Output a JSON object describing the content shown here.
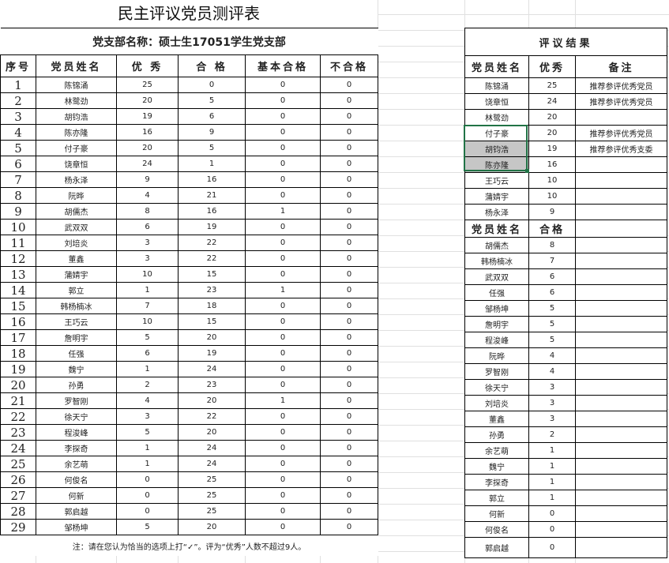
{
  "title": "民主评议党员测评表",
  "branch": "党支部名称：硕士生17051学生党支部",
  "headers": [
    "序号",
    "党员姓名",
    "优  秀",
    "合  格",
    "基本合格",
    "不合格"
  ],
  "rows": [
    [
      "1",
      "陈锦涌",
      "25",
      "0",
      "0",
      "0"
    ],
    [
      "2",
      "林鹭劲",
      "20",
      "5",
      "0",
      "0"
    ],
    [
      "3",
      "胡钧浩",
      "19",
      "6",
      "0",
      "0"
    ],
    [
      "4",
      "陈亦隆",
      "16",
      "9",
      "0",
      "0"
    ],
    [
      "5",
      "付子豪",
      "20",
      "5",
      "0",
      "0"
    ],
    [
      "6",
      "饶章恒",
      "24",
      "1",
      "0",
      "0"
    ],
    [
      "7",
      "杨永泽",
      "9",
      "16",
      "0",
      "0"
    ],
    [
      "8",
      "阮晔",
      "4",
      "21",
      "0",
      "0"
    ],
    [
      "9",
      "胡儒杰",
      "8",
      "16",
      "1",
      "0"
    ],
    [
      "10",
      "武双双",
      "6",
      "19",
      "0",
      "0"
    ],
    [
      "11",
      "刘培炎",
      "3",
      "22",
      "0",
      "0"
    ],
    [
      "12",
      "董鑫",
      "3",
      "22",
      "0",
      "0"
    ],
    [
      "13",
      "蒲婧宇",
      "10",
      "15",
      "0",
      "0"
    ],
    [
      "14",
      "郭立",
      "1",
      "23",
      "1",
      "0"
    ],
    [
      "15",
      "韩杨楠冰",
      "7",
      "18",
      "0",
      "0"
    ],
    [
      "16",
      "王巧云",
      "10",
      "15",
      "0",
      "0"
    ],
    [
      "17",
      "詹明宇",
      "5",
      "20",
      "0",
      "0"
    ],
    [
      "18",
      "任强",
      "6",
      "19",
      "0",
      "0"
    ],
    [
      "19",
      "魏宁",
      "1",
      "24",
      "0",
      "0"
    ],
    [
      "20",
      "孙勇",
      "2",
      "23",
      "0",
      "0"
    ],
    [
      "21",
      "罗智刚",
      "4",
      "20",
      "1",
      "0"
    ],
    [
      "22",
      "徐天宁",
      "3",
      "22",
      "0",
      "0"
    ],
    [
      "23",
      "程浚峰",
      "5",
      "20",
      "0",
      "0"
    ],
    [
      "24",
      "李探奇",
      "1",
      "24",
      "0",
      "0"
    ],
    [
      "25",
      "余艺萌",
      "1",
      "24",
      "0",
      "0"
    ],
    [
      "26",
      "何俊名",
      "0",
      "25",
      "0",
      "0"
    ],
    [
      "27",
      "何新",
      "0",
      "25",
      "0",
      "0"
    ],
    [
      "28",
      "郭启越",
      "0",
      "25",
      "0",
      "0"
    ],
    [
      "29",
      "邹杨坤",
      "5",
      "20",
      "0",
      "0"
    ]
  ],
  "note": "注：请在您认为恰当的选项上打“✓”。评为“优秀”人数不超过9人。",
  "results": {
    "title": "评议结果",
    "headers": [
      "党员姓名",
      "优秀",
      "备注"
    ],
    "excellent": [
      [
        "陈锦涌",
        "25",
        "推荐参评优秀党员"
      ],
      [
        "饶章恒",
        "24",
        "推荐参评优秀党员"
      ],
      [
        "林鹭劲",
        "20",
        ""
      ],
      [
        "付子豪",
        "20",
        "推荐参评优秀党员"
      ],
      [
        "胡钧浩",
        "19",
        "推荐参评优秀支委"
      ],
      [
        "陈亦隆",
        "16",
        ""
      ],
      [
        "王巧云",
        "10",
        ""
      ],
      [
        "蒲婧宇",
        "10",
        ""
      ],
      [
        "杨永泽",
        "9",
        ""
      ]
    ],
    "headers2": [
      "党员姓名",
      "合格"
    ],
    "qualified": [
      [
        "胡儒杰",
        "8"
      ],
      [
        "韩杨楠冰",
        "7"
      ],
      [
        "武双双",
        "6"
      ],
      [
        "任强",
        "6"
      ],
      [
        "邹杨坤",
        "5"
      ],
      [
        "詹明宇",
        "5"
      ],
      [
        "程浚峰",
        "5"
      ],
      [
        "阮晔",
        "4"
      ],
      [
        "罗智刚",
        "4"
      ],
      [
        "徐天宁",
        "3"
      ],
      [
        "刘培炎",
        "3"
      ],
      [
        "董鑫",
        "3"
      ],
      [
        "孙勇",
        "2"
      ],
      [
        "余艺萌",
        "1"
      ],
      [
        "魏宁",
        "1"
      ],
      [
        "李探奇",
        "1"
      ],
      [
        "郭立",
        "1"
      ],
      [
        "何新",
        "0"
      ],
      [
        "何俊名",
        "0"
      ],
      [
        "郭启越",
        "0"
      ]
    ],
    "selected_names": [
      "胡钧浩",
      "陈亦隆"
    ]
  },
  "colors": {
    "selection_border": "#217346",
    "selection_fill": "#c6c6c6"
  }
}
